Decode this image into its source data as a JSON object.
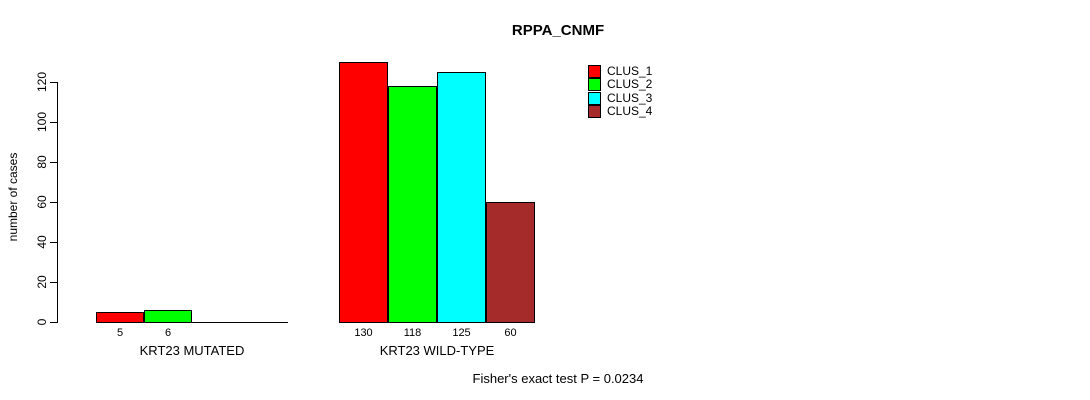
{
  "chart_data": {
    "type": "bar",
    "title": "RPPA_CNMF",
    "xlabel": "",
    "ylabel": "number of cases",
    "categories": [
      "KRT23 MUTATED",
      "KRT23 WILD-TYPE"
    ],
    "series": [
      {
        "name": "CLUS_1",
        "color": "#ff0000",
        "values": [
          5,
          130
        ]
      },
      {
        "name": "CLUS_2",
        "color": "#00ff00",
        "values": [
          6,
          118
        ]
      },
      {
        "name": "CLUS_3",
        "color": "#00ffff",
        "values": [
          0,
          125
        ]
      },
      {
        "name": "CLUS_4",
        "color": "#a52a2a",
        "values": [
          0,
          60
        ]
      }
    ],
    "visible_bar_labels": [
      [
        "5",
        "6"
      ],
      [
        "130",
        "118",
        "125",
        "60"
      ]
    ],
    "ylim": [
      0,
      130
    ],
    "yticks": [
      0,
      20,
      40,
      60,
      80,
      100,
      120
    ],
    "grid": false,
    "legend_position": "top-right",
    "annotation": "Fisher's exact test P = 0.0234",
    "axis_color": "#000000",
    "background_color": "#ffffff"
  }
}
